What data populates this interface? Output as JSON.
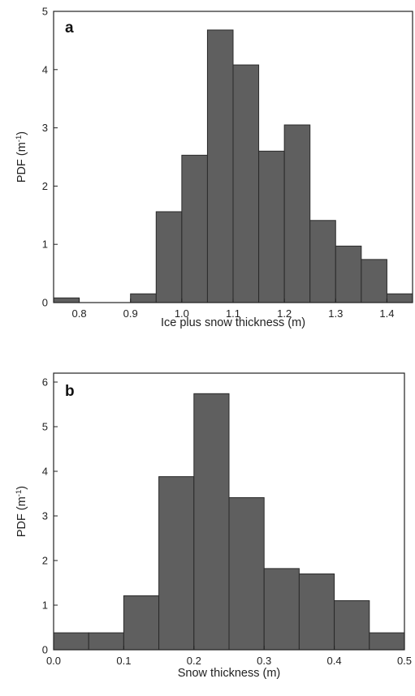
{
  "chart_data": [
    {
      "type": "bar",
      "panel_letter": "a",
      "xlabel": "Ice plus snow thickness (m)",
      "ylabel_main": "PDF (m",
      "ylabel_sup": "-1",
      "ylabel_close": ")",
      "xlim": [
        0.75,
        1.45
      ],
      "ylim": [
        0,
        5
      ],
      "xticks": [
        0.8,
        0.9,
        1.0,
        1.1,
        1.2,
        1.3,
        1.4
      ],
      "xtick_labels": [
        "0.8",
        "0.9",
        "1.0",
        "1.1",
        "1.2",
        "1.3",
        "1.4"
      ],
      "yticks": [
        0,
        1,
        2,
        3,
        4,
        5
      ],
      "ytick_labels": [
        "0",
        "1",
        "2",
        "3",
        "4",
        "5"
      ],
      "bin_edges": [
        0.75,
        0.8,
        0.85,
        0.9,
        0.95,
        1.0,
        1.05,
        1.1,
        1.15,
        1.2,
        1.25,
        1.3,
        1.35,
        1.4,
        1.45
      ],
      "values": [
        0.08,
        0.0,
        0.0,
        0.15,
        1.56,
        2.53,
        4.68,
        4.08,
        2.6,
        3.05,
        1.41,
        0.97,
        0.74,
        0.15
      ],
      "grid": false,
      "color": "#5f5f5f"
    },
    {
      "type": "bar",
      "panel_letter": "b",
      "xlabel": "Snow thickness (m)",
      "ylabel_main": "PDF (m",
      "ylabel_sup": "-1",
      "ylabel_close": ")",
      "xlim": [
        0.0,
        0.5
      ],
      "ylim": [
        0,
        6.2
      ],
      "xticks": [
        0.0,
        0.1,
        0.2,
        0.3,
        0.4,
        0.5
      ],
      "xtick_labels": [
        "0.0",
        "0.1",
        "0.2",
        "0.3",
        "0.4",
        "0.5"
      ],
      "yticks": [
        0,
        1,
        2,
        3,
        4,
        5,
        6
      ],
      "ytick_labels": [
        "0",
        "1",
        "2",
        "3",
        "4",
        "5",
        "6"
      ],
      "bin_edges": [
        0.0,
        0.05,
        0.1,
        0.15,
        0.2,
        0.25,
        0.3,
        0.35,
        0.4,
        0.45,
        0.5
      ],
      "values": [
        0.38,
        0.38,
        1.21,
        3.88,
        5.74,
        3.41,
        1.82,
        1.7,
        1.1,
        0.38
      ],
      "grid": false,
      "color": "#5f5f5f"
    }
  ]
}
